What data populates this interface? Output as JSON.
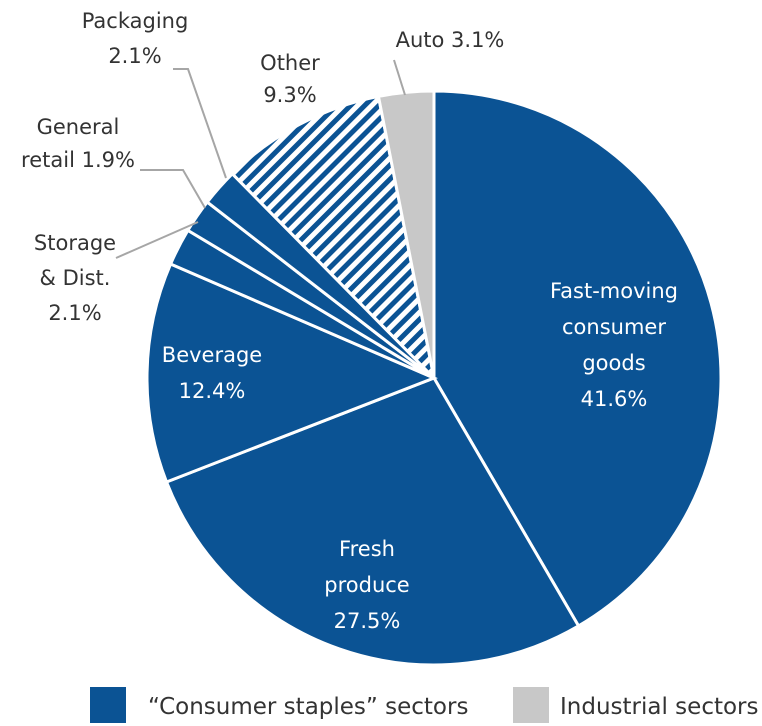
{
  "chart_data": {
    "type": "pie",
    "title": "",
    "start": "12 o'clock, clockwise",
    "slices": [
      {
        "label_lines": [
          "Fast-moving",
          "consumer",
          "goods"
        ],
        "value_label": "41.6%",
        "value": 41.6,
        "group": "consumer",
        "label_position": "inside"
      },
      {
        "label_lines": [
          "Fresh",
          "produce"
        ],
        "value_label": "27.5%",
        "value": 27.5,
        "group": "consumer",
        "label_position": "inside"
      },
      {
        "label_lines": [
          "Beverage"
        ],
        "value_label": "12.4%",
        "value": 12.4,
        "group": "consumer",
        "label_position": "inside"
      },
      {
        "label_lines": [
          "Storage",
          "& Dist."
        ],
        "value_label": "2.1%",
        "value": 2.1,
        "group": "consumer",
        "label_position": "outside"
      },
      {
        "label_lines": [
          "General",
          "retail 1.9%"
        ],
        "value_label": "",
        "value": 1.9,
        "group": "consumer",
        "label_position": "outside"
      },
      {
        "label_lines": [
          "Packaging"
        ],
        "value_label": "2.1%",
        "value": 2.1,
        "group": "consumer",
        "label_position": "outside"
      },
      {
        "label_lines": [
          "Other"
        ],
        "value_label": "9.3%",
        "value": 9.3,
        "group": "other",
        "label_position": "outside"
      },
      {
        "label_lines": [
          "Auto 3.1%"
        ],
        "value_label": "",
        "value": 3.1,
        "group": "industrial",
        "label_position": "outside"
      }
    ],
    "legend": [
      {
        "label": "“Consumer staples” sectors",
        "group": "consumer"
      },
      {
        "label": "Industrial sectors",
        "group": "industrial"
      }
    ],
    "legend_placement": "bottom",
    "colors": {
      "consumer": "#0b5394",
      "industrial": "#c8c8c8",
      "other_stripe": "#0b5394",
      "other_background": "#ffffff"
    },
    "other_fill": "diagonal-stripes"
  }
}
